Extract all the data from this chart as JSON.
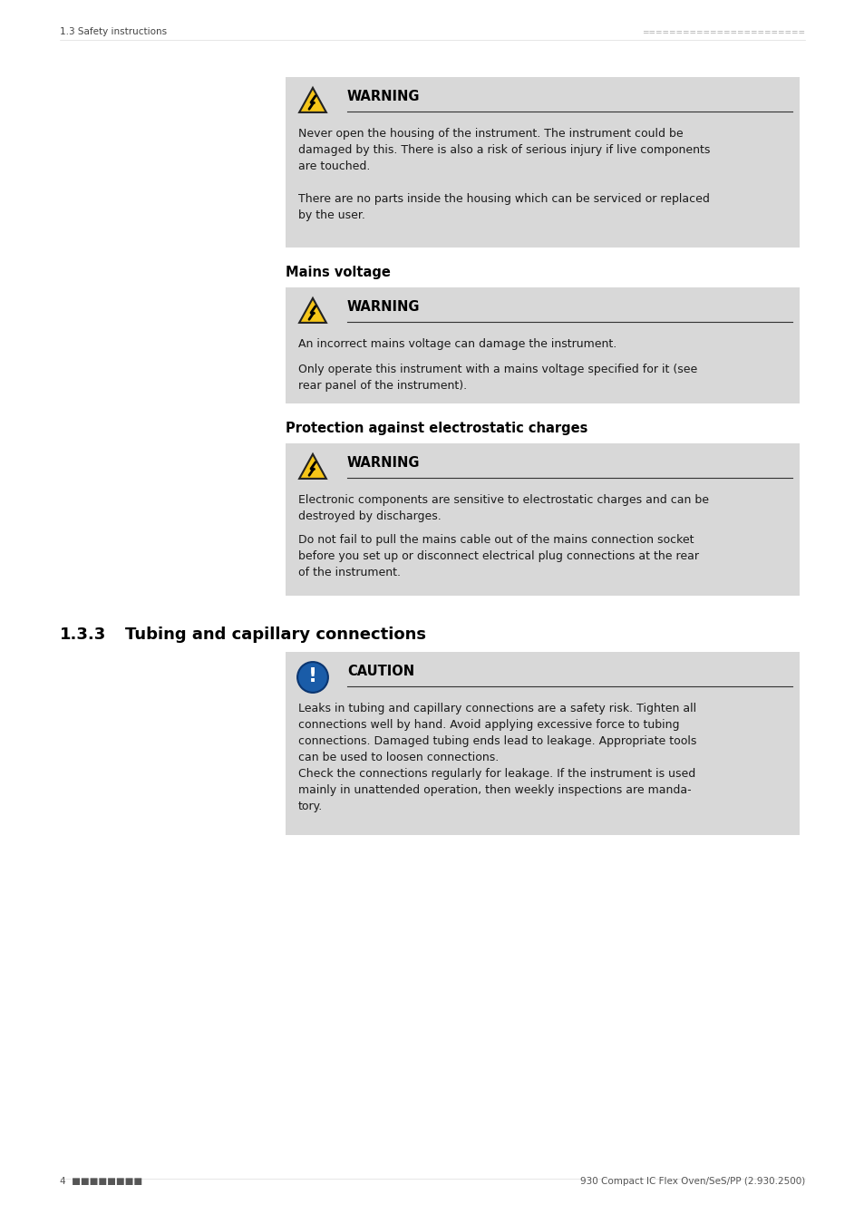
{
  "page_bg": "#ffffff",
  "header_left": "1.3 Safety instructions",
  "header_right_dots": "========================",
  "footer_left": "4  ■■■■■■■■",
  "footer_right": "930 Compact IC Flex Oven/SeS/PP (2.930.2500)",
  "box_bg": "#d8d8d8",
  "box_border": "#bbbbbb",
  "warning_title": "WARNING",
  "caution_title": "CAUTION",
  "section_133": "1.3.3",
  "section_133_title": "Tubing and capillary connections",
  "mains_voltage_heading": "Mains voltage",
  "protection_heading": "Protection against electrostatic charges",
  "icon_warning_color": "#f5c518",
  "icon_warning_border": "#222222",
  "icon_caution_color": "#1a5ca8",
  "text_color": "#1a1a1a",
  "heading_color": "#000000",
  "sep_line_color": "#333333"
}
